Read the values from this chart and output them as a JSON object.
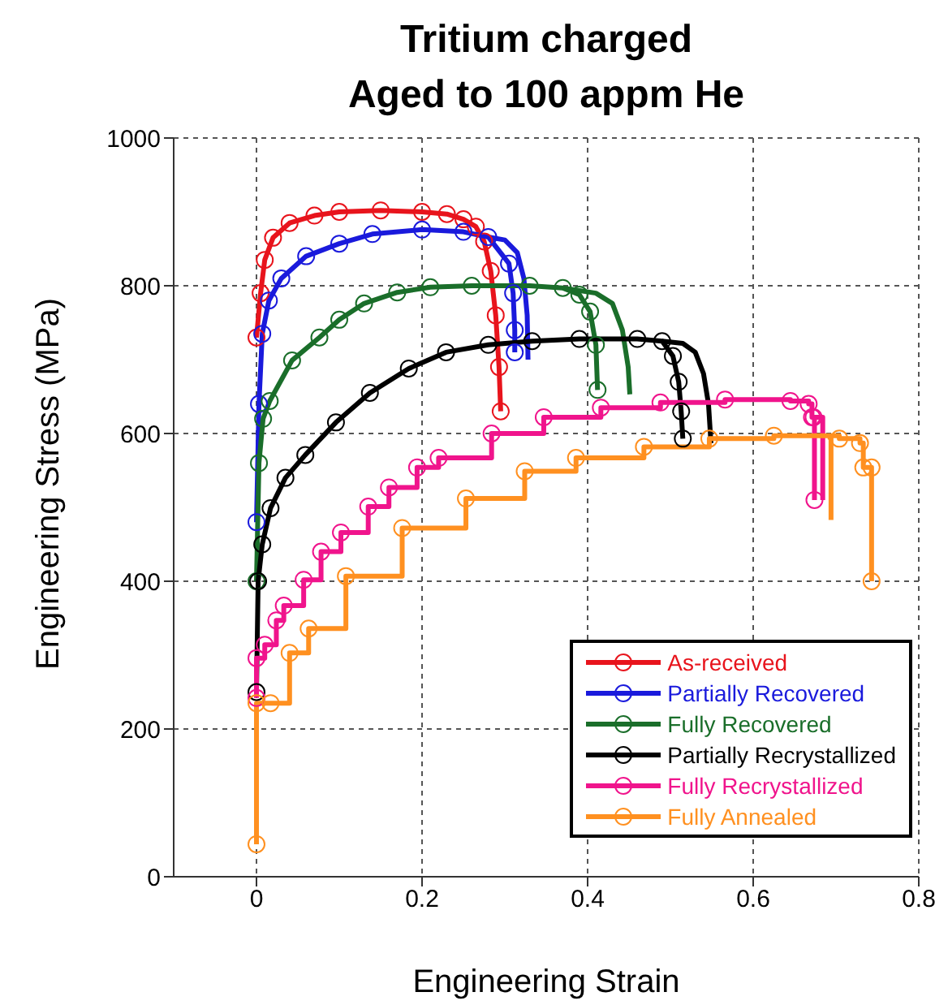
{
  "chart_data": {
    "type": "line",
    "title": "Tritium charged\nAged to 100 appm He",
    "xlabel": "Engineering Strain",
    "ylabel": "Engineering Stress (MPa)",
    "xlim": [
      -0.1,
      0.8
    ],
    "xticks": [
      0,
      0.2,
      0.4,
      0.6,
      0.8
    ],
    "ylim": [
      0,
      1000
    ],
    "yticks": [
      0,
      200,
      400,
      600,
      800,
      1000
    ],
    "grid": true,
    "legend": "bottom right",
    "marker": "circle",
    "series": [
      {
        "name": "As-received",
        "color": "#e8141c",
        "x": [
          0,
          0.005,
          0.01,
          0.02,
          0.04,
          0.07,
          0.1,
          0.15,
          0.2,
          0.23,
          0.25,
          0.265,
          0.275,
          0.283,
          0.289,
          0.293,
          0.295
        ],
        "values": [
          730,
          790,
          835,
          865,
          885,
          895,
          900,
          902,
          900,
          897,
          890,
          880,
          860,
          820,
          760,
          690,
          630
        ]
      },
      {
        "name": "Partially Recovered",
        "color": "#1a1adc",
        "x": [
          0,
          0.003,
          0.007,
          0.015,
          0.03,
          0.06,
          0.1,
          0.14,
          0.2,
          0.25,
          0.28,
          0.305,
          0.31,
          0.312,
          0.312
        ],
        "values": [
          480,
          640,
          735,
          780,
          810,
          840,
          857,
          870,
          876,
          873,
          866,
          830,
          790,
          740,
          710
        ]
      },
      {
        "color": "#1a1adc",
        "marker": "none",
        "x": [
          0.28,
          0.3,
          0.315,
          0.323,
          0.327,
          0.328
        ],
        "values": [
          866,
          862,
          845,
          810,
          760,
          700
        ]
      },
      {
        "name": "Fully Recovered",
        "color": "#1a6e2a",
        "x": [
          0,
          0.003,
          0.008,
          0.016,
          0.043,
          0.076,
          0.1,
          0.13,
          0.17,
          0.21,
          0.26,
          0.33,
          0.37,
          0.39,
          0.403,
          0.41,
          0.412
        ],
        "values": [
          400,
          560,
          620,
          644,
          699,
          730,
          754,
          776,
          791,
          798,
          800,
          800,
          797,
          788,
          765,
          720,
          659
        ]
      },
      {
        "color": "#1a6e2a",
        "marker": "none",
        "x": [
          0.37,
          0.41,
          0.43,
          0.442,
          0.449,
          0.451
        ],
        "values": [
          797,
          790,
          776,
          740,
          690,
          653
        ]
      },
      {
        "name": "Partially Recrystallized",
        "color": "#000000",
        "x": [
          0,
          0.002,
          0.007,
          0.017,
          0.035,
          0.059,
          0.096,
          0.137,
          0.184,
          0.229,
          0.28,
          0.333,
          0.39,
          0.46,
          0.49,
          0.503,
          0.51,
          0.513,
          0.515
        ],
        "values": [
          250,
          400,
          450,
          499,
          540,
          571,
          615,
          655,
          688,
          710,
          720,
          725,
          728,
          728,
          725,
          705,
          670,
          630,
          593
        ]
      },
      {
        "color": "#000000",
        "marker": "none",
        "x": [
          0.49,
          0.515,
          0.53,
          0.54,
          0.546,
          0.549
        ],
        "values": [
          725,
          722,
          710,
          681,
          640,
          587
        ]
      },
      {
        "name": "Fully Recrystallized",
        "color": "#f0148c",
        "type": "step",
        "x": [
          0,
          0,
          0.01,
          0.024,
          0.033,
          0.057,
          0.078,
          0.102,
          0.135,
          0.16,
          0.194,
          0.22,
          0.284,
          0.347,
          0.416,
          0.488,
          0.566,
          0.645,
          0.667,
          0.671,
          0.673,
          0.674
        ],
        "values": [
          242,
          296,
          314,
          347,
          367,
          402,
          440,
          466,
          501,
          527,
          554,
          567,
          600,
          622,
          635,
          642,
          646,
          644,
          640,
          622,
          622,
          510
        ]
      },
      {
        "color": "#f0148c",
        "type": "step",
        "marker": "none",
        "x": [
          0.671,
          0.684,
          0.684
        ],
        "values": [
          622,
          622,
          510
        ]
      },
      {
        "name": "Fully Annealed",
        "color": "#ff9020",
        "type": "step",
        "x": [
          0,
          0,
          0.017,
          0.04,
          0.063,
          0.108,
          0.176,
          0.253,
          0.324,
          0.386,
          0.468,
          0.547,
          0.625,
          0.704,
          0.729,
          0.733,
          0.743,
          0.743
        ],
        "values": [
          44,
          235,
          235,
          303,
          336,
          407,
          472,
          512,
          549,
          567,
          582,
          593,
          597,
          593,
          587,
          554,
          554,
          400
        ]
      },
      {
        "color": "#ff9020",
        "type": "step",
        "marker": "none",
        "x": [
          0.69,
          0.694,
          0.694
        ],
        "values": [
          595,
          595,
          483
        ]
      }
    ]
  }
}
